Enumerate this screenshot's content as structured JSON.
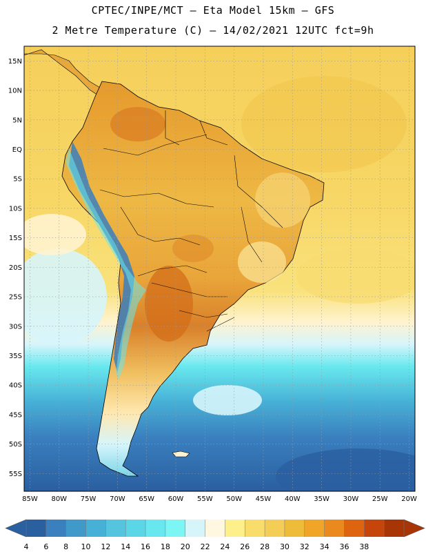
{
  "header": {
    "line1": "CPTEC/INPE/MCT –  Eta Model 15km – GFS",
    "line2": "2 Metre Temperature (C) – 14/02/2021 12UTC fct=9h"
  },
  "axes": {
    "lat_labels": [
      "15N",
      "10N",
      "5N",
      "EQ",
      "5S",
      "10S",
      "15S",
      "20S",
      "25S",
      "30S",
      "35S",
      "40S",
      "45S",
      "50S",
      "55S"
    ],
    "lat_values": [
      15,
      10,
      5,
      0,
      -5,
      -10,
      -15,
      -20,
      -25,
      -30,
      -35,
      -40,
      -45,
      -50,
      -55
    ],
    "lon_labels": [
      "85W",
      "80W",
      "75W",
      "70W",
      "65W",
      "60W",
      "55W",
      "50W",
      "45W",
      "40W",
      "35W",
      "30W",
      "25W",
      "20W"
    ],
    "lon_values": [
      -85,
      -80,
      -75,
      -70,
      -65,
      -60,
      -55,
      -50,
      -45,
      -40,
      -35,
      -30,
      -25,
      -20
    ],
    "lat_range": [
      -58,
      17.5
    ],
    "lon_range": [
      -86,
      -19
    ]
  },
  "colorbar": {
    "labels": [
      "4",
      "6",
      "8",
      "10",
      "12",
      "14",
      "16",
      "18",
      "20",
      "22",
      "24",
      "26",
      "28",
      "30",
      "32",
      "34",
      "36",
      "38"
    ],
    "colors": [
      "#2a5fa0",
      "#3a7fbe",
      "#3f9ac9",
      "#47b0d6",
      "#55c5df",
      "#5ad6e6",
      "#68e8ee",
      "#7cf5f5",
      "#d6f5fb",
      "#fff7e0",
      "#fdf08a",
      "#f8dd6b",
      "#f3cd55",
      "#efbc3a",
      "#f0a428",
      "#ea8a1e",
      "#de6410",
      "#c5450a",
      "#a83505"
    ]
  },
  "colors": {
    "ocean_warm": "#f6d35f",
    "ocean_mid": "#f8e27a",
    "ocean_cool": "#5ad6e6",
    "ocean_cold": "#2a5fa0",
    "land_hot": "#d67a1e",
    "land_warm": "#eab03c",
    "andes": "#3a7fbe"
  }
}
